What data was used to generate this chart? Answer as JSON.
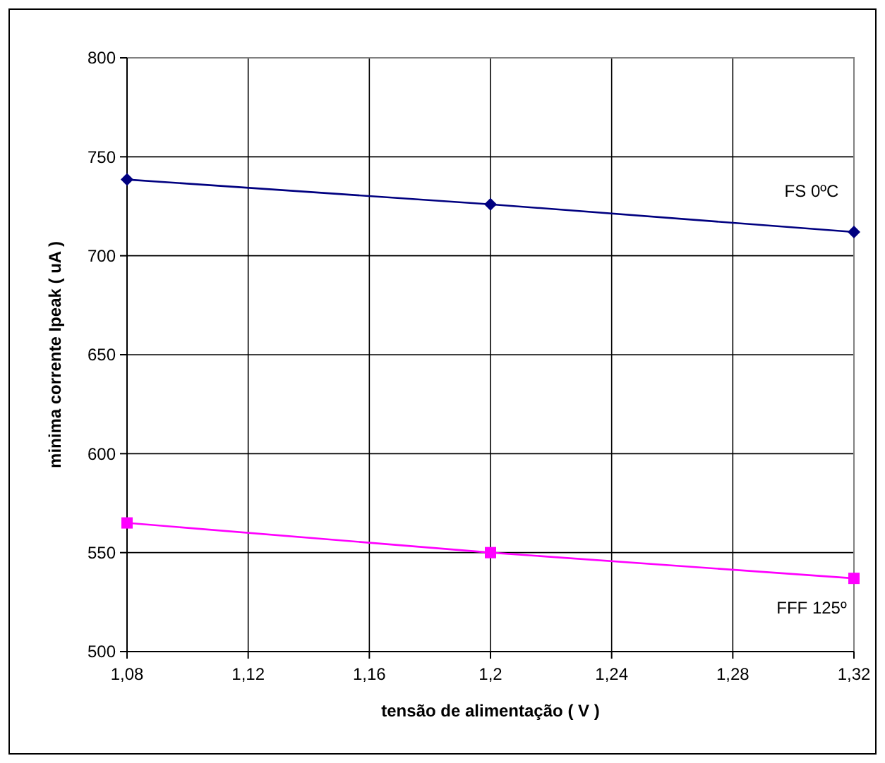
{
  "chart_data": {
    "type": "line",
    "xlabel": "tensão de alimentação ( V )",
    "ylabel": "minima corrente Ipeak ( uA )",
    "x": [
      1.08,
      1.2,
      1.32
    ],
    "series": [
      {
        "name": "FS 0ºC",
        "color": "#000080",
        "marker": "diamond",
        "values": [
          738.5,
          726,
          712
        ]
      },
      {
        "name": "FFF 125º",
        "color": "#ff00ff",
        "marker": "square",
        "values": [
          565,
          550,
          537
        ]
      }
    ],
    "xlim": [
      1.08,
      1.32
    ],
    "xticks": [
      {
        "value": 1.08,
        "label": "1,08"
      },
      {
        "value": 1.12,
        "label": "1,12"
      },
      {
        "value": 1.16,
        "label": "1,16"
      },
      {
        "value": 1.2,
        "label": "1,2"
      },
      {
        "value": 1.24,
        "label": "1,24"
      },
      {
        "value": 1.28,
        "label": "1,28"
      },
      {
        "value": 1.32,
        "label": "1,32"
      }
    ],
    "ylim": [
      500,
      800
    ],
    "yticks": [
      500,
      550,
      600,
      650,
      700,
      750,
      800
    ],
    "grid": true,
    "line_style": "solid"
  }
}
